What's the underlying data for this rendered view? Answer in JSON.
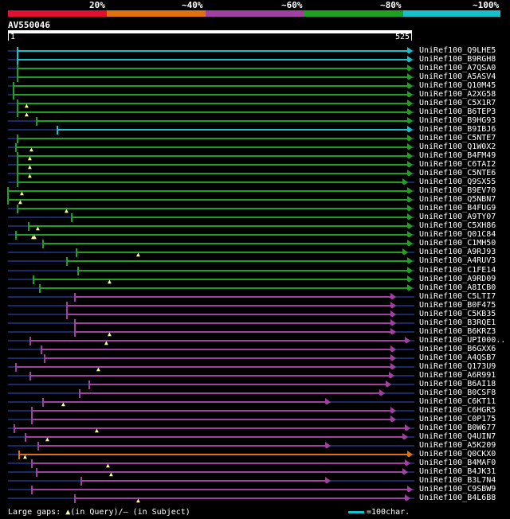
{
  "scale": {
    "labels": [
      "20%",
      "~40%",
      "~60%",
      "~80%",
      "~100%"
    ],
    "colors": [
      "#e01030",
      "#e07010",
      "#a040a0",
      "#20a020",
      "#18c0cc"
    ]
  },
  "query": {
    "id": "AV550046",
    "start": "1",
    "end": "525"
  },
  "legend": {
    "text": "Large gaps: ",
    "tri": "▲",
    "text2": "(in Query)/— (in Subject)",
    "scale_text": "=100char."
  },
  "colors": {
    "cyan": "#18c0cc",
    "green": "#20a020",
    "purple": "#a040a0",
    "orange": "#e07010"
  },
  "hits": [
    {
      "id": "UniRef100_Q9LHE5",
      "c": "cyan"
    },
    {
      "id": "UniRef100_B9RGH8",
      "c": "cyan"
    },
    {
      "id": "UniRef100_A7QSA0",
      "c": "green"
    },
    {
      "id": "UniRef100_A5ASV4",
      "c": "green"
    },
    {
      "id": "UniRef100_Q10M45",
      "c": "green"
    },
    {
      "id": "UniRef100_A2XG58",
      "c": "green"
    },
    {
      "id": "UniRef100_C5X1R7",
      "c": "green"
    },
    {
      "id": "UniRef100_B6TEP3",
      "c": "green"
    },
    {
      "id": "UniRef100_B9HG93",
      "c": "green"
    },
    {
      "id": "UniRef100_B9IBJ6",
      "c": "cyan"
    },
    {
      "id": "UniRef100_C5NTE7",
      "c": "green"
    },
    {
      "id": "UniRef100_Q1W0X2",
      "c": "green"
    },
    {
      "id": "UniRef100_B4FM49",
      "c": "green"
    },
    {
      "id": "UniRef100_C6TAI2",
      "c": "green"
    },
    {
      "id": "UniRef100_C5NTE6",
      "c": "green"
    },
    {
      "id": "UniRef100_Q9SX55",
      "c": "green"
    },
    {
      "id": "UniRef100_B9EV70",
      "c": "green"
    },
    {
      "id": "UniRef100_Q5NBN7",
      "c": "green"
    },
    {
      "id": "UniRef100_B4FUG9",
      "c": "green"
    },
    {
      "id": "UniRef100_A9TY07",
      "c": "green"
    },
    {
      "id": "UniRef100_C5XH86",
      "c": "green"
    },
    {
      "id": "UniRef100_Q01C84",
      "c": "green"
    },
    {
      "id": "UniRef100_C1MH50",
      "c": "green"
    },
    {
      "id": "UniRef100_A9RJ93",
      "c": "green"
    },
    {
      "id": "UniRef100_A4RUV3",
      "c": "green"
    },
    {
      "id": "UniRef100_C1FE14",
      "c": "green"
    },
    {
      "id": "UniRef100_A9RD09",
      "c": "green"
    },
    {
      "id": "UniRef100_A8ICB0",
      "c": "green"
    },
    {
      "id": "UniRef100_C5LTI7",
      "c": "purple"
    },
    {
      "id": "UniRef100_B0F475",
      "c": "purple"
    },
    {
      "id": "UniRef100_C5KB35",
      "c": "purple"
    },
    {
      "id": "UniRef100_B3RQE1",
      "c": "purple"
    },
    {
      "id": "UniRef100_B6KRZ3",
      "c": "purple"
    },
    {
      "id": "UniRef100_UPI000..",
      "c": "purple"
    },
    {
      "id": "UniRef100_B6GXX6",
      "c": "purple"
    },
    {
      "id": "UniRef100_A4QSB7",
      "c": "purple"
    },
    {
      "id": "UniRef100_Q173U9",
      "c": "purple"
    },
    {
      "id": "UniRef100_A6R991",
      "c": "purple"
    },
    {
      "id": "UniRef100_B6AI18",
      "c": "purple"
    },
    {
      "id": "UniRef100_B0CSF8",
      "c": "purple"
    },
    {
      "id": "UniRef100_C6KT11",
      "c": "purple"
    },
    {
      "id": "UniRef100_C6HGR5",
      "c": "purple"
    },
    {
      "id": "UniRef100_C0P175",
      "c": "purple"
    },
    {
      "id": "UniRef100_B0W677",
      "c": "purple"
    },
    {
      "id": "UniRef100_Q4UIN7",
      "c": "purple"
    },
    {
      "id": "UniRef100_A5K209",
      "c": "purple"
    },
    {
      "id": "UniRef100_Q0CKX0",
      "c": "orange"
    },
    {
      "id": "UniRef100_B4MAF0",
      "c": "purple"
    },
    {
      "id": "UniRef100_B4JK31",
      "c": "purple"
    },
    {
      "id": "UniRef100_B3L7N4",
      "c": "purple"
    },
    {
      "id": "UniRef100_C9SBW9",
      "c": "purple"
    },
    {
      "id": "UniRef100_B4L6B8",
      "c": "purple"
    }
  ]
}
